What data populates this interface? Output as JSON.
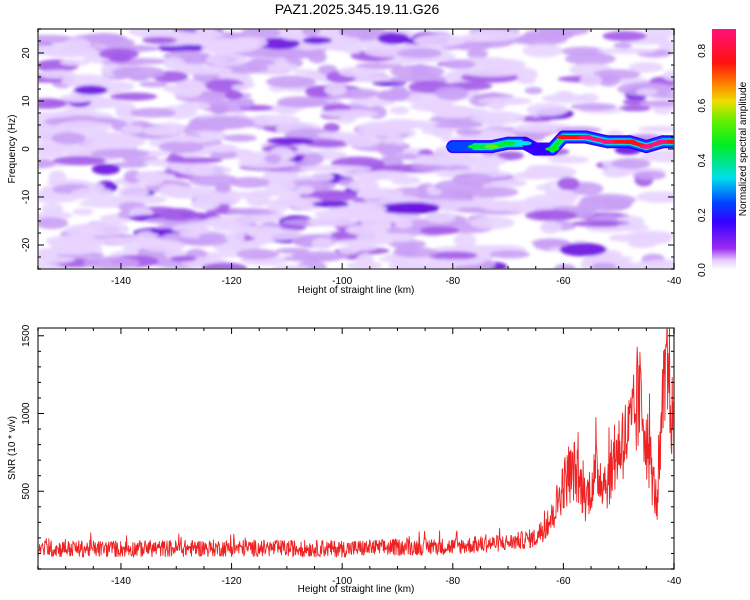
{
  "figure_title": "PAZ1.2025.345.19.11.G26",
  "chart_data": [
    {
      "type": "heatmap",
      "title": "PAZ1.2025.345.19.11.G26",
      "xlabel": "Height of straight line (km)",
      "ylabel": "Frequency (Hz)",
      "xlim": [
        -155,
        -40
      ],
      "ylim": [
        -25,
        25
      ],
      "xticks": [
        -140,
        -120,
        -100,
        -80,
        -60,
        -40
      ],
      "xtick_labels": [
        "-140",
        "-120",
        "-100",
        "-80",
        "-60",
        "-40"
      ],
      "yticks": [
        -20,
        -10,
        0,
        10,
        20
      ],
      "ytick_labels": [
        "-20",
        "-10",
        "0",
        "10",
        "20"
      ],
      "colorbar": {
        "label": "Normalized spectral amplitude",
        "range": [
          0.0,
          0.88
        ],
        "ticks": [
          0.0,
          0.2,
          0.4,
          0.6,
          0.8
        ],
        "tick_labels": [
          "0.0",
          "0.2",
          "0.4",
          "0.6",
          "0.8"
        ],
        "colormap": "rainbow (white-violet-blue-cyan-green-yellow-red-magenta)"
      },
      "signal_ridge": [
        {
          "x": -80,
          "freq": 0.5,
          "amp": 0.2
        },
        {
          "x": -76,
          "freq": 0.5,
          "amp": 0.45
        },
        {
          "x": -73,
          "freq": 0.5,
          "amp": 0.5
        },
        {
          "x": -70,
          "freq": 1.2,
          "amp": 0.4
        },
        {
          "x": -67,
          "freq": 1.2,
          "amp": 0.3
        },
        {
          "x": -65,
          "freq": 0.0,
          "amp": 0.15
        },
        {
          "x": -62,
          "freq": 0.0,
          "amp": 0.35
        },
        {
          "x": -60,
          "freq": 2.5,
          "amp": 0.7
        },
        {
          "x": -56,
          "freq": 2.5,
          "amp": 0.8
        },
        {
          "x": -52,
          "freq": 1.5,
          "amp": 0.8
        },
        {
          "x": -48,
          "freq": 1.5,
          "amp": 0.75
        },
        {
          "x": -45,
          "freq": 0.5,
          "amp": 0.8
        },
        {
          "x": -42,
          "freq": 1.5,
          "amp": 0.8
        },
        {
          "x": -40,
          "freq": 1.5,
          "amp": 0.75
        }
      ],
      "background": "scattered low-amplitude noise (0.0-0.15) across all frequencies"
    },
    {
      "type": "line",
      "xlabel": "Height of straight line (km)",
      "ylabel": "SNR (10 * v/v)",
      "xlim": [
        -155,
        -40
      ],
      "ylim": [
        0,
        1550
      ],
      "xticks": [
        -140,
        -120,
        -100,
        -80,
        -60,
        -40
      ],
      "xtick_labels": [
        "-140",
        "-120",
        "-100",
        "-80",
        "-60",
        "-40"
      ],
      "yticks": [
        500,
        1000,
        1500
      ],
      "ytick_labels": [
        "500",
        "1000",
        "1500"
      ],
      "series": [
        {
          "name": "SNR",
          "color": "#ee2222",
          "x": [
            -155,
            -140,
            -120,
            -100,
            -90,
            -80,
            -70,
            -65,
            -62,
            -60,
            -58,
            -56,
            -54,
            -52,
            -50,
            -48,
            -46,
            -44,
            -43,
            -42,
            -41,
            -40
          ],
          "y": [
            130,
            130,
            135,
            130,
            140,
            145,
            170,
            200,
            330,
            550,
            640,
            450,
            620,
            560,
            780,
            880,
            1100,
            600,
            400,
            1050,
            1300,
            800
          ]
        }
      ]
    }
  ]
}
